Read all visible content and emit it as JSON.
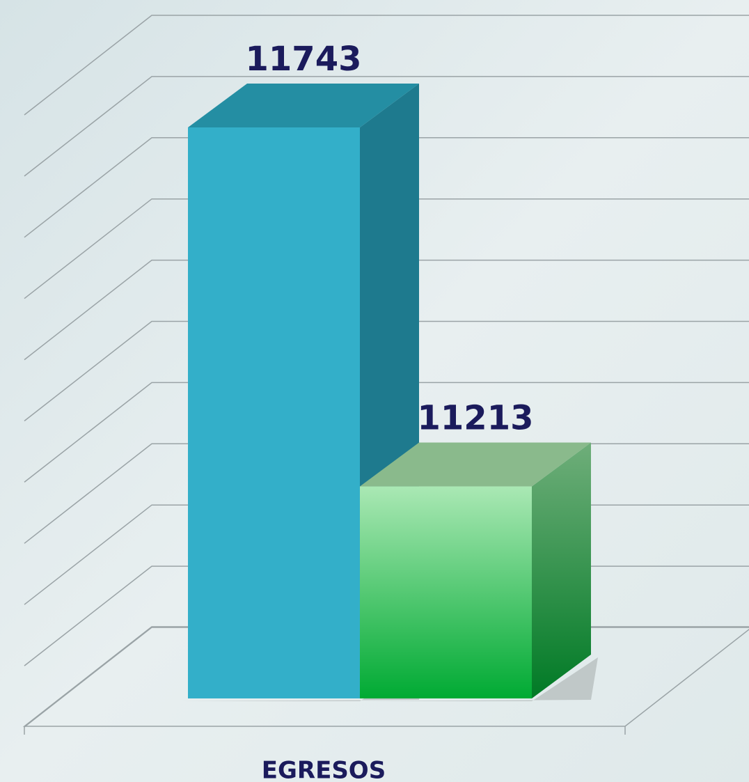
{
  "chart_data": {
    "type": "bar3d",
    "categories": [
      "EGRESOS"
    ],
    "series": [
      {
        "color": "#33afc9",
        "values": [
          11743
        ]
      },
      {
        "color": "#00aa33",
        "values": [
          11213
        ]
      }
    ],
    "ylim": [
      10900,
      11900
    ],
    "yticks": [
      10900,
      11000,
      11100,
      11200,
      11300,
      11400,
      11500,
      11600,
      11700,
      11800,
      11900
    ],
    "grid": true
  }
}
